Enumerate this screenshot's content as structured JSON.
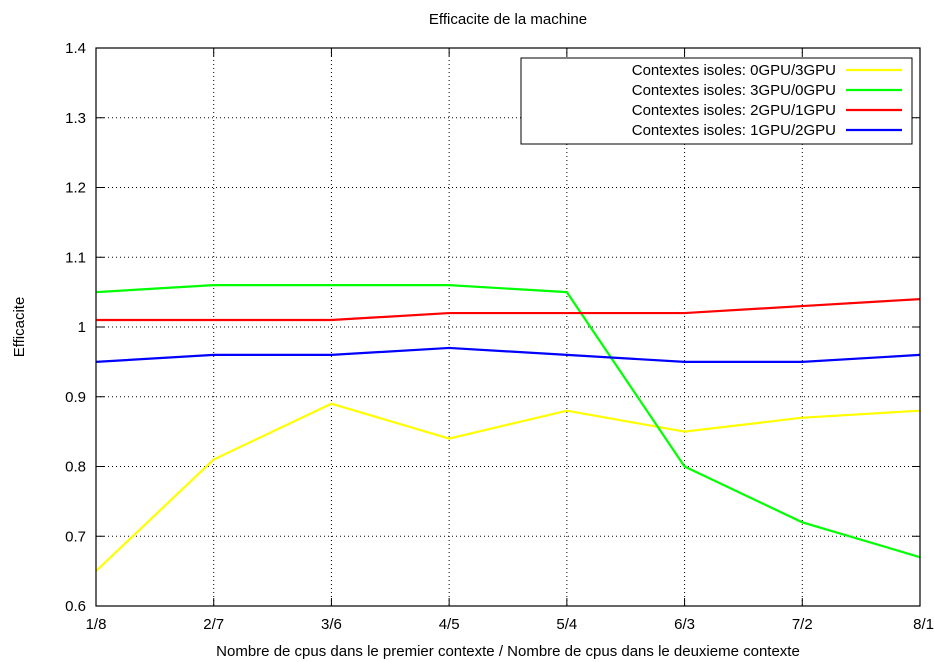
{
  "chart_data": {
    "type": "line",
    "title": "Efficacite de la machine",
    "xlabel": "Nombre de cpus dans le premier contexte / Nombre de cpus dans le deuxieme contexte",
    "ylabel": "Efficacite",
    "categories": [
      "1/8",
      "2/7",
      "3/6",
      "4/5",
      "5/4",
      "6/3",
      "7/2",
      "8/1"
    ],
    "ylim": [
      0.6,
      1.4
    ],
    "yticks": [
      "0.6",
      "0.7",
      "0.8",
      "0.9",
      "1",
      "1.1",
      "1.2",
      "1.3",
      "1.4"
    ],
    "grid": true,
    "legend_position": "top-right",
    "series": [
      {
        "name": "Contextes isoles: 0GPU/3GPU",
        "color": "#ffff00",
        "values": [
          0.65,
          0.81,
          0.89,
          0.84,
          0.88,
          0.85,
          0.87,
          0.88
        ]
      },
      {
        "name": "Contextes isoles: 3GPU/0GPU",
        "color": "#00ff00",
        "values": [
          1.05,
          1.06,
          1.06,
          1.06,
          1.05,
          0.8,
          0.72,
          0.67
        ]
      },
      {
        "name": "Contextes isoles: 2GPU/1GPU",
        "color": "#ff0000",
        "values": [
          1.01,
          1.01,
          1.01,
          1.02,
          1.02,
          1.02,
          1.03,
          1.04
        ]
      },
      {
        "name": "Contextes isoles: 1GPU/2GPU",
        "color": "#0000ff",
        "values": [
          0.95,
          0.96,
          0.96,
          0.97,
          0.96,
          0.95,
          0.95,
          0.96
        ]
      }
    ]
  }
}
